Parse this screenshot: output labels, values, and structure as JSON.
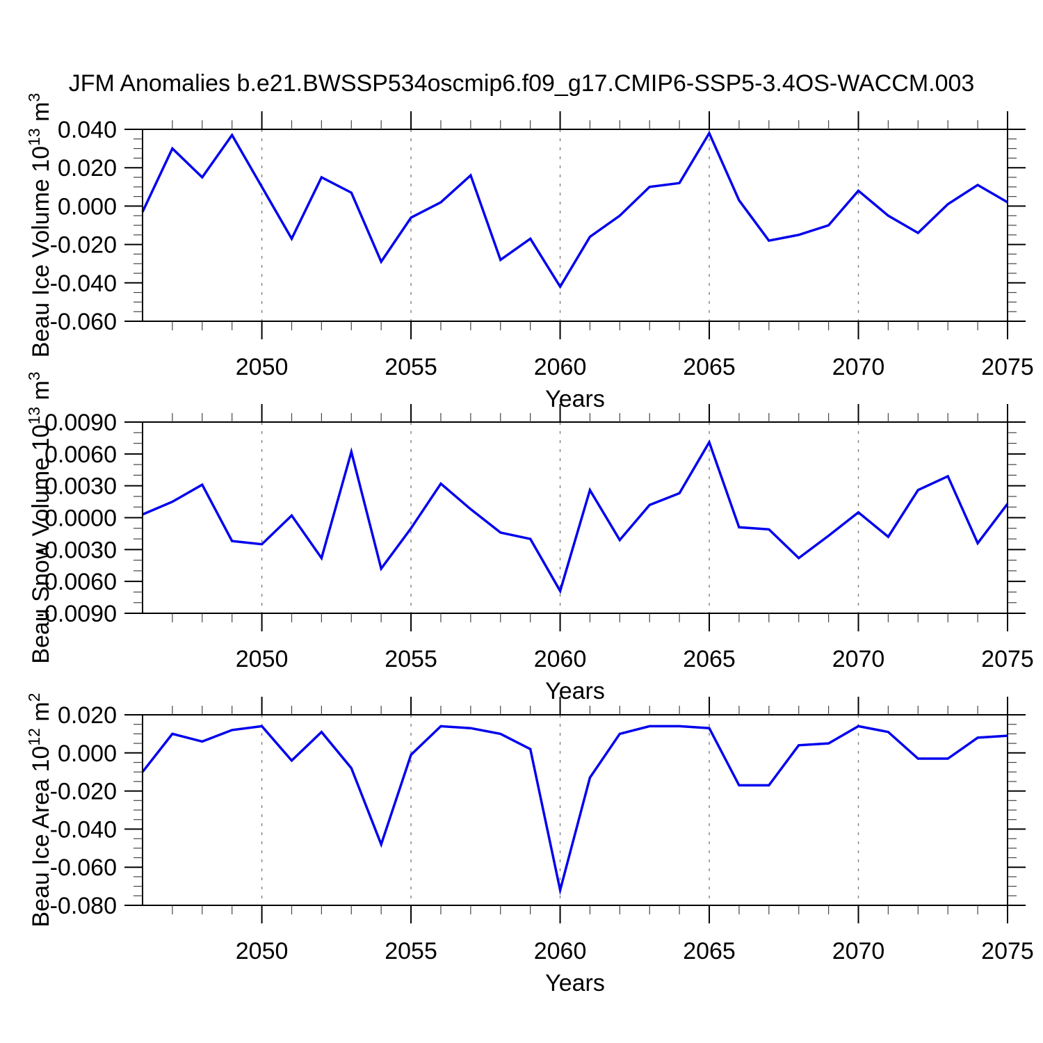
{
  "title": "JFM Anomalies b.e21.BWSSP534oscmip6.f09_g17.CMIP6-SSP5-3.4OS-WACCM.003",
  "colors": {
    "line": "#0000EE",
    "axis": "#000000",
    "minor_tick": "#444444",
    "grid": "#808080",
    "background": "#FFFFFF"
  },
  "chart_data": {
    "type": "line",
    "suptitle": "JFM Anomalies b.e21.BWSSP534oscmip6.f09_g17.CMIP6-SSP5-3.4OS-WACCM.003",
    "x_name": "Years",
    "years": [
      2046,
      2047,
      2048,
      2049,
      2050,
      2051,
      2052,
      2053,
      2054,
      2055,
      2056,
      2057,
      2058,
      2059,
      2060,
      2061,
      2062,
      2063,
      2064,
      2065,
      2066,
      2067,
      2068,
      2069,
      2070,
      2071,
      2072,
      2073,
      2074,
      2075
    ],
    "xlim": [
      2046,
      2075
    ],
    "xtick_values": [
      2050,
      2055,
      2060,
      2065,
      2070,
      2075
    ],
    "xtick_labels": [
      "2050",
      "2055",
      "2060",
      "2065",
      "2070",
      "2075"
    ],
    "grid_years": [
      2050,
      2055,
      2060,
      2065,
      2070
    ],
    "legend": "none",
    "grid": "vertical-dashed",
    "panels": [
      {
        "id": "ice-volume",
        "xlabel": "Years",
        "ylabel_parts": [
          {
            "t": "Beau Ice Volume 10"
          },
          {
            "t": "13",
            "sup": true
          },
          {
            "t": " m"
          },
          {
            "t": "3",
            "sup": true
          }
        ],
        "ylim": [
          -0.06,
          0.04
        ],
        "ytick_values": [
          0.04,
          0.02,
          0.0,
          -0.02,
          -0.04,
          -0.06
        ],
        "ytick_labels": [
          "0.040",
          "0.020",
          "0.000",
          "-0.020",
          "-0.040",
          "-0.060"
        ],
        "ytick_minor_step": 0.005,
        "values": [
          -0.003,
          0.03,
          0.015,
          0.037,
          0.01,
          -0.017,
          0.015,
          0.007,
          -0.029,
          -0.006,
          0.002,
          0.016,
          -0.028,
          -0.017,
          -0.042,
          -0.016,
          -0.005,
          0.01,
          0.012,
          0.038,
          0.003,
          -0.018,
          -0.015,
          -0.01,
          0.008,
          -0.005,
          -0.014,
          0.001,
          0.011,
          0.002
        ]
      },
      {
        "id": "snow-volume",
        "xlabel": "Years",
        "ylabel_parts": [
          {
            "t": "Beau Snow Volume 10"
          },
          {
            "t": "13",
            "sup": true
          },
          {
            "t": " m"
          },
          {
            "t": "3",
            "sup": true
          }
        ],
        "ylim": [
          -0.009,
          0.009
        ],
        "ytick_values": [
          0.009,
          0.006,
          0.003,
          0.0,
          -0.003,
          -0.006,
          -0.009
        ],
        "ytick_labels": [
          "0.0090",
          "0.0060",
          "0.0030",
          "0.0000",
          "-0.0030",
          "-0.0060",
          "-0.0090"
        ],
        "ytick_minor_step": 0.001,
        "values": [
          0.0003,
          0.0015,
          0.0031,
          -0.0022,
          -0.0025,
          0.0002,
          -0.0038,
          0.0062,
          -0.0048,
          -0.001,
          0.0032,
          0.0008,
          -0.0014,
          -0.002,
          -0.0069,
          0.0026,
          -0.0021,
          0.0012,
          0.0023,
          0.0071,
          -0.0009,
          -0.0011,
          -0.0038,
          -0.0017,
          0.0005,
          -0.0018,
          0.0026,
          0.0039,
          -0.0024,
          0.0013
        ]
      },
      {
        "id": "ice-area",
        "xlabel": "Years",
        "ylabel_parts": [
          {
            "t": "Beau Ice Area 10"
          },
          {
            "t": "12",
            "sup": true
          },
          {
            "t": " m"
          },
          {
            "t": "2",
            "sup": true
          }
        ],
        "ylim": [
          -0.08,
          0.02
        ],
        "ytick_values": [
          0.02,
          0.0,
          -0.02,
          -0.04,
          -0.06,
          -0.08
        ],
        "ytick_labels": [
          "0.020",
          "0.000",
          "-0.020",
          "-0.040",
          "-0.060",
          "-0.080"
        ],
        "ytick_minor_step": 0.005,
        "values": [
          -0.01,
          0.01,
          0.006,
          0.012,
          0.014,
          -0.004,
          0.011,
          -0.008,
          -0.048,
          -0.001,
          0.014,
          0.013,
          0.01,
          0.002,
          -0.072,
          -0.013,
          0.01,
          0.014,
          0.014,
          0.013,
          -0.017,
          -0.017,
          0.004,
          0.005,
          0.014,
          0.011,
          -0.003,
          -0.003,
          0.008,
          0.009
        ]
      }
    ]
  }
}
